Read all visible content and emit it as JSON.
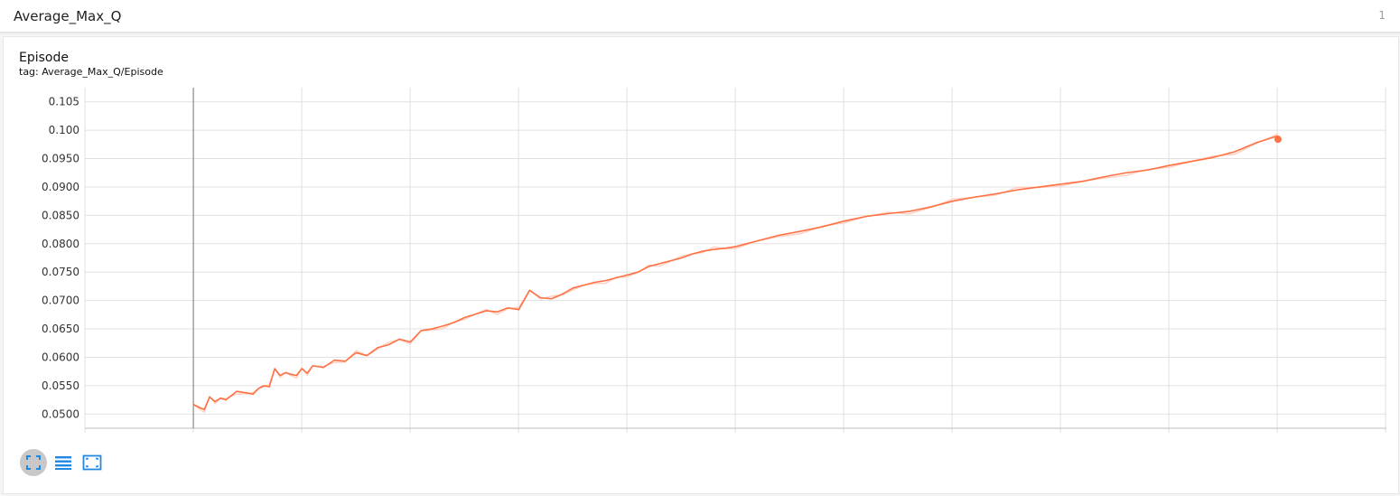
{
  "header": {
    "title": "Average_Max_Q",
    "count": "1"
  },
  "card": {
    "title": "Episode",
    "subtitle": "tag: Average_Max_Q/Episode"
  },
  "colors": {
    "line": "#ff7043",
    "line_raw": "#ffccbc",
    "grid": "#e0e0e0",
    "axis": "#888888",
    "accent": "#2196f3"
  },
  "icons": [
    "fullscreen-icon",
    "toggle-log-list-icon",
    "fit-domain-icon"
  ],
  "chart_data": {
    "type": "line",
    "title": "",
    "xlabel": "",
    "ylabel": "",
    "xlim": [
      -100,
      1100
    ],
    "ylim": [
      0.0475,
      0.1075
    ],
    "yticks": [
      "0.0500",
      "0.0550",
      "0.0600",
      "0.0650",
      "0.0700",
      "0.0750",
      "0.0800",
      "0.0850",
      "0.0900",
      "0.0950",
      "0.100",
      "0.105"
    ],
    "grid": true,
    "series": [
      {
        "smoothed": true,
        "x": [
          0,
          5,
          10,
          15,
          20,
          25,
          30,
          40,
          50,
          55,
          60,
          65,
          70,
          75,
          80,
          85,
          90,
          95,
          100,
          105,
          110,
          120,
          130,
          140,
          150,
          160,
          170,
          180,
          190,
          200,
          210,
          220,
          230,
          240,
          250,
          260,
          270,
          280,
          290,
          300,
          310,
          320,
          330,
          340,
          350,
          360,
          370,
          380,
          390,
          400,
          410,
          420,
          430,
          440,
          450,
          460,
          470,
          480,
          490,
          500,
          520,
          540,
          560,
          580,
          600,
          620,
          640,
          660,
          680,
          700,
          720,
          740,
          760,
          780,
          800,
          820,
          840,
          860,
          880,
          900,
          920,
          940,
          960,
          980,
          1000
        ],
        "y": [
          0.0517,
          0.0512,
          0.0508,
          0.053,
          0.0522,
          0.0528,
          0.0525,
          0.054,
          0.0537,
          0.0535,
          0.0545,
          0.055,
          0.0548,
          0.058,
          0.0568,
          0.0573,
          0.057,
          0.0568,
          0.058,
          0.0572,
          0.0585,
          0.0582,
          0.0595,
          0.0593,
          0.0608,
          0.0603,
          0.0617,
          0.0622,
          0.0632,
          0.0627,
          0.0647,
          0.065,
          0.0655,
          0.0661,
          0.067,
          0.0676,
          0.0682,
          0.068,
          0.0687,
          0.0684,
          0.0718,
          0.0705,
          0.0703,
          0.0711,
          0.0722,
          0.0727,
          0.0732,
          0.0735,
          0.074,
          0.0745,
          0.075,
          0.076,
          0.0765,
          0.077,
          0.0775,
          0.0782,
          0.0787,
          0.079,
          0.0792,
          0.0795,
          0.0805,
          0.0815,
          0.0822,
          0.083,
          0.084,
          0.0848,
          0.0853,
          0.0857,
          0.0865,
          0.0875,
          0.0882,
          0.0888,
          0.0895,
          0.09,
          0.0905,
          0.091,
          0.0918,
          0.0925,
          0.093,
          0.0938,
          0.0945,
          0.0952,
          0.0962,
          0.0978,
          0.099
        ]
      }
    ]
  }
}
